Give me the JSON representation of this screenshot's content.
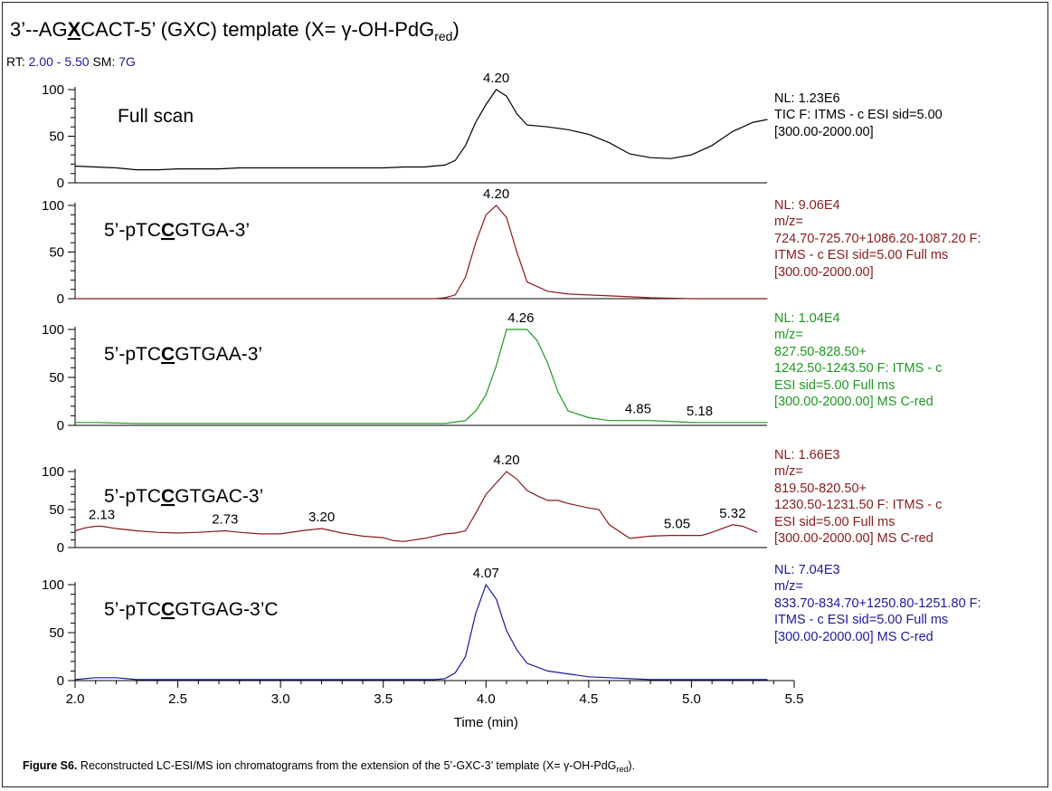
{
  "title": {
    "prefix": "3’--AG",
    "x_letter": "X",
    "mid": "CACT-5’ (GXC) template (X= γ-OH-PdG",
    "sub": "red",
    "suffix": ")"
  },
  "rt": {
    "label": "RT:",
    "range": "2.00 - 5.50",
    "sm_label": "SM:",
    "sm": "7G"
  },
  "chart_data": {
    "type": "line",
    "x_range": [
      2.0,
      5.5
    ],
    "xlabel": "Time (min)",
    "x_ticks": [
      "2.0",
      "2.5",
      "3.0",
      "3.5",
      "4.0",
      "4.5",
      "5.0",
      "5.5"
    ],
    "y_ticks": [
      "0",
      "50",
      "100"
    ],
    "y_range": [
      0,
      100
    ],
    "panels": [
      {
        "name_prefix": "Full scan",
        "name_under": "",
        "name_suffix": "",
        "color": "#000000",
        "x": [
          2.0,
          2.1,
          2.2,
          2.3,
          2.4,
          2.5,
          2.6,
          2.7,
          2.8,
          2.9,
          3.0,
          3.1,
          3.2,
          3.3,
          3.4,
          3.5,
          3.6,
          3.7,
          3.8,
          3.85,
          3.9,
          3.95,
          4.0,
          4.05,
          4.1,
          4.15,
          4.2,
          4.3,
          4.4,
          4.5,
          4.6,
          4.7,
          4.8,
          4.9,
          5.0,
          5.1,
          5.2,
          5.3,
          5.37
        ],
        "y": [
          18,
          17,
          16,
          14,
          14,
          15,
          15,
          15,
          16,
          16,
          16,
          16,
          16,
          16,
          16,
          16,
          17,
          17,
          19,
          24,
          40,
          65,
          84,
          100,
          93,
          74,
          62,
          60,
          57,
          52,
          43,
          31,
          27,
          26,
          30,
          40,
          55,
          65,
          68
        ],
        "peak_labels": [
          {
            "x": 4.05,
            "y": 100,
            "text": "4.20"
          }
        ],
        "info": [
          "NL: 1.23E6",
          "TIC F: ITMS - c ESI sid=5.00",
          "[300.00-2000.00]"
        ]
      },
      {
        "name_prefix": "5’-pTC",
        "name_under": "C",
        "name_suffix": "GTGA-3’",
        "color": "#8b1a1a",
        "x": [
          2.0,
          2.5,
          3.0,
          3.5,
          3.75,
          3.8,
          3.85,
          3.9,
          3.95,
          4.0,
          4.05,
          4.1,
          4.15,
          4.2,
          4.3,
          4.4,
          4.5,
          4.6,
          4.7,
          4.8,
          5.0,
          5.2,
          5.37
        ],
        "y": [
          0,
          0,
          0,
          0,
          0,
          1,
          4,
          23,
          60,
          90,
          100,
          87,
          50,
          18,
          8,
          5,
          4,
          3,
          2,
          1,
          0,
          0,
          0
        ],
        "peak_labels": [
          {
            "x": 4.05,
            "y": 100,
            "text": "4.20"
          }
        ],
        "info": [
          "NL: 9.06E4",
          "m/z=",
          "724.70-725.70+1086.20-1087.20 F:",
          "ITMS - c ESI sid=5.00  Full ms",
          "[300.00-2000.00]"
        ]
      },
      {
        "name_prefix": "5’-pTC",
        "name_under": "C",
        "name_suffix": "GTGAA-3’",
        "color": "#1e9a1e",
        "x": [
          2.0,
          2.1,
          2.3,
          2.5,
          3.0,
          3.5,
          3.8,
          3.9,
          3.95,
          4.0,
          4.05,
          4.1,
          4.15,
          4.2,
          4.25,
          4.3,
          4.35,
          4.4,
          4.5,
          4.6,
          4.8,
          5.0,
          5.18,
          5.25,
          5.37
        ],
        "y": [
          3,
          3,
          2,
          2,
          2,
          2,
          2,
          5,
          15,
          32,
          62,
          100,
          100,
          100,
          88,
          65,
          35,
          15,
          8,
          5,
          5,
          3,
          3,
          3,
          3
        ],
        "peak_labels": [
          {
            "x": 4.17,
            "y": 100,
            "text": "4.26"
          },
          {
            "x": 4.74,
            "y": 5,
            "text": "4.85"
          },
          {
            "x": 5.04,
            "y": 3,
            "text": "5.18"
          }
        ],
        "info": [
          "NL: 1.04E4",
          "m/z=",
          "827.50-828.50+",
          "1242.50-1243.50 F: ITMS - c",
          "ESI sid=5.00  Full ms",
          "[300.00-2000.00]  MS C-red"
        ]
      },
      {
        "name_prefix": "5’-pTC",
        "name_under": "C",
        "name_suffix": "GTGAC-3’",
        "color": "#8b1a1a",
        "x": [
          2.0,
          2.05,
          2.1,
          2.13,
          2.2,
          2.3,
          2.4,
          2.5,
          2.6,
          2.73,
          2.8,
          2.9,
          3.0,
          3.1,
          3.2,
          3.3,
          3.4,
          3.5,
          3.55,
          3.6,
          3.7,
          3.8,
          3.85,
          3.9,
          3.95,
          4.0,
          4.1,
          4.15,
          4.2,
          4.25,
          4.3,
          4.35,
          4.4,
          4.5,
          4.55,
          4.6,
          4.7,
          4.8,
          4.9,
          5.0,
          5.05,
          5.1,
          5.2,
          5.25,
          5.32
        ],
        "y": [
          22,
          26,
          28,
          28,
          25,
          22,
          20,
          19,
          20,
          22,
          20,
          18,
          18,
          22,
          25,
          19,
          15,
          13,
          9,
          8,
          12,
          18,
          19,
          22,
          45,
          70,
          100,
          90,
          75,
          68,
          62,
          62,
          58,
          52,
          50,
          30,
          12,
          15,
          16,
          16,
          16,
          20,
          30,
          28,
          20
        ],
        "peak_labels": [
          {
            "x": 4.1,
            "y": 100,
            "text": "4.20"
          },
          {
            "x": 2.13,
            "y": 28,
            "text": "2.13"
          },
          {
            "x": 2.73,
            "y": 22,
            "text": "2.73"
          },
          {
            "x": 3.2,
            "y": 25,
            "text": "3.20"
          },
          {
            "x": 4.93,
            "y": 16,
            "text": "5.05"
          },
          {
            "x": 5.2,
            "y": 30,
            "text": "5.32"
          }
        ],
        "info": [
          "NL: 1.66E3",
          "m/z=",
          "819.50-820.50+",
          "1230.50-1231.50 F: ITMS - c",
          "ESI sid=5.00  Full ms",
          "[300.00-2000.00]  MS C-red"
        ]
      },
      {
        "name_prefix": "5’-pTC",
        "name_under": "C",
        "name_suffix": "GTGAG-3’C",
        "color": "#1a1a9c",
        "x": [
          2.0,
          2.1,
          2.2,
          2.3,
          2.5,
          3.0,
          3.5,
          3.75,
          3.8,
          3.85,
          3.9,
          3.95,
          4.0,
          4.05,
          4.1,
          4.15,
          4.2,
          4.3,
          4.4,
          4.5,
          4.6,
          4.7,
          4.8,
          5.0,
          5.37
        ],
        "y": [
          1,
          3,
          3,
          1,
          1,
          1,
          1,
          1,
          2,
          8,
          25,
          70,
          100,
          85,
          52,
          32,
          18,
          10,
          7,
          4,
          3,
          2,
          1,
          1,
          1
        ],
        "peak_labels": [
          {
            "x": 4.0,
            "y": 100,
            "text": "4.07"
          }
        ],
        "info": [
          "NL: 7.04E3",
          "m/z=",
          "833.70-834.70+1250.80-1251.80 F:",
          "ITMS - c ESI sid=5.00  Full ms",
          "[300.00-2000.00]  MS C-red"
        ]
      }
    ]
  },
  "caption": {
    "bold": "Figure S6.",
    "text": " Reconstructed LC-ESI/MS ion chromatograms from the extension of the 5’-GXC-3’ template (X= γ-OH-PdG",
    "sub": "red",
    "suffix": ")."
  }
}
